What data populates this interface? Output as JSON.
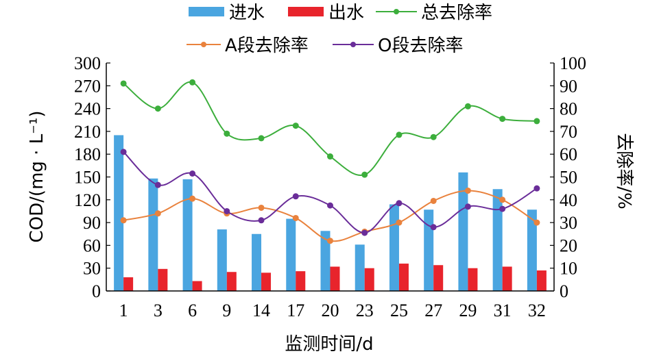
{
  "chart_data": {
    "type": "bar",
    "categories": [
      "1",
      "3",
      "6",
      "9",
      "14",
      "17",
      "20",
      "23",
      "25",
      "27",
      "29",
      "31",
      "32"
    ],
    "series": [
      {
        "name": "进水",
        "type": "bar",
        "axis": "left",
        "color": "#4aa5e0",
        "values": [
          205,
          148,
          147,
          81,
          75,
          95,
          79,
          61,
          114,
          107,
          156,
          134,
          107
        ]
      },
      {
        "name": "出水",
        "type": "bar",
        "axis": "left",
        "color": "#e8242c",
        "values": [
          18,
          29,
          13,
          25,
          24,
          26,
          32,
          30,
          36,
          34,
          30,
          32,
          27
        ]
      },
      {
        "name": "总去除率",
        "type": "line",
        "axis": "right",
        "color": "#3cae3c",
        "values": [
          91,
          80,
          91.5,
          69,
          67,
          72.5,
          59,
          51,
          68.5,
          67.5,
          81,
          75.5,
          74.5
        ]
      },
      {
        "name": "A段去除率",
        "type": "line",
        "axis": "right",
        "color": "#e9823d",
        "values": [
          31,
          34,
          40.5,
          34,
          36.5,
          32,
          22,
          26,
          30,
          39.5,
          44,
          40,
          30
        ]
      },
      {
        "name": "O段去除率",
        "type": "line",
        "axis": "right",
        "color": "#6a2d99",
        "values": [
          61,
          46.5,
          51.5,
          35,
          31,
          41.5,
          37.5,
          25.5,
          38.5,
          28,
          37,
          36,
          45
        ]
      }
    ],
    "xlabel": "监测时间/d",
    "ylabel": "COD/(mg · L⁻¹)",
    "ylabel_right": "去除率/%",
    "ylim": [
      0,
      300
    ],
    "ylim_right": [
      0,
      100
    ],
    "yticks": [
      "0",
      "30",
      "60",
      "90",
      "120",
      "150",
      "180",
      "210",
      "240",
      "270",
      "300"
    ],
    "yticks_right": [
      "0",
      "10",
      "20",
      "30",
      "40",
      "50",
      "60",
      "70",
      "80",
      "90",
      "100"
    ],
    "grid": false,
    "legend_position": "top"
  }
}
